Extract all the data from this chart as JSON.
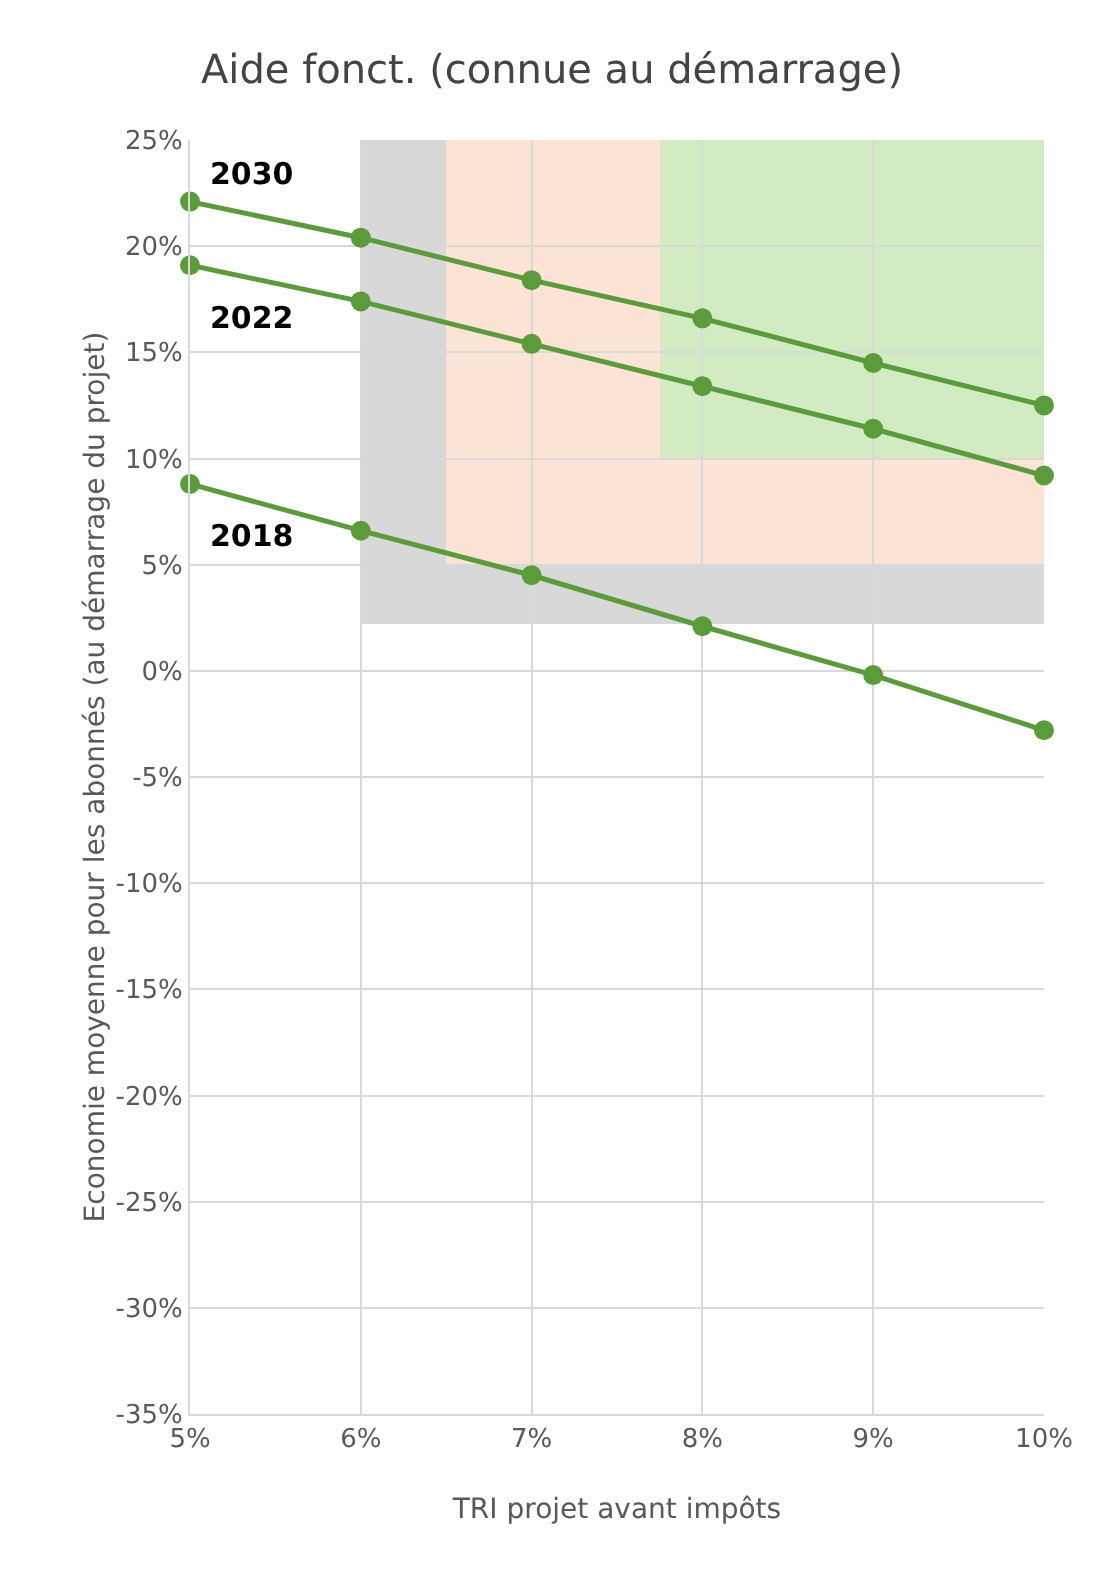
{
  "chart_data": {
    "type": "line",
    "title": "Aide fonct. (connue au démarrage)",
    "xlabel": "TRI projet avant impôts",
    "ylabel": "Economie moyenne pour les abonnés (au démarrage du projet)",
    "x": [
      5,
      6,
      7,
      8,
      9,
      10
    ],
    "series": [
      {
        "name": "2030",
        "color": "#5b9b3b",
        "values": [
          22.1,
          20.4,
          18.4,
          16.6,
          14.5,
          12.5
        ]
      },
      {
        "name": "2022",
        "color": "#5b9b3b",
        "values": [
          19.1,
          17.4,
          15.4,
          13.4,
          11.4,
          9.2
        ]
      },
      {
        "name": "2018",
        "color": "#5b9b3b",
        "values": [
          8.8,
          6.6,
          4.5,
          2.1,
          -0.2,
          -2.8
        ]
      }
    ],
    "xlim": [
      5,
      10
    ],
    "xticks": [
      {
        "value": 5,
        "label": "5%"
      },
      {
        "value": 6,
        "label": "6%"
      },
      {
        "value": 7,
        "label": "7%"
      },
      {
        "value": 8,
        "label": "8%"
      },
      {
        "value": 9,
        "label": "9%"
      },
      {
        "value": 10,
        "label": "10%"
      }
    ],
    "ylim": [
      -35,
      25
    ],
    "yticks": [
      {
        "value": -35,
        "label": "-35%"
      },
      {
        "value": -30,
        "label": "-30%"
      },
      {
        "value": -25,
        "label": "-25%"
      },
      {
        "value": -20,
        "label": "-20%"
      },
      {
        "value": -15,
        "label": "-15%"
      },
      {
        "value": -10,
        "label": "-10%"
      },
      {
        "value": -5,
        "label": "-5%"
      },
      {
        "value": 0,
        "label": "0%"
      },
      {
        "value": 5,
        "label": "5%"
      },
      {
        "value": 10,
        "label": "10%"
      },
      {
        "value": 15,
        "label": "15%"
      },
      {
        "value": 20,
        "label": "20%"
      },
      {
        "value": 25,
        "label": "25%"
      }
    ],
    "grid": true,
    "legend": false,
    "marker": "circle",
    "line_style": "solid"
  }
}
